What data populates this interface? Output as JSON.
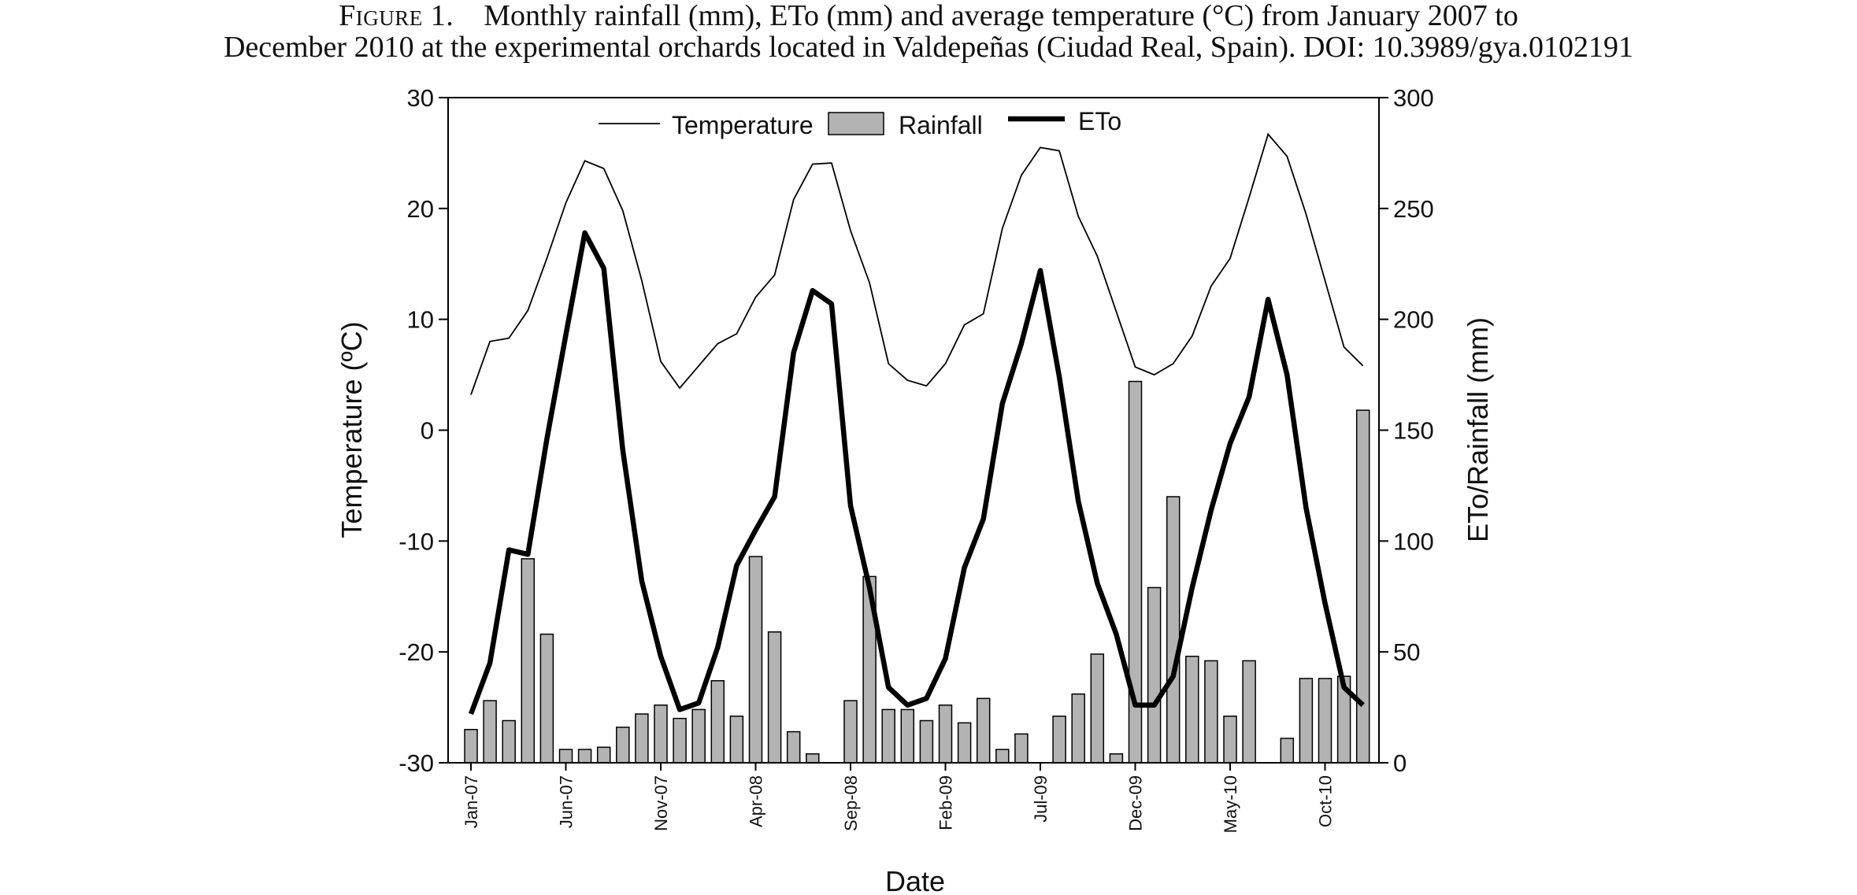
{
  "caption": {
    "figure_label": "Figure 1.",
    "line1": "Monthly rainfall (mm), ETo (mm) and average temperature (°C) from January 2007 to",
    "line2": "December 2010 at the experimental orchards located in Valdepeñas (Ciudad Real, Spain). DOI: 10.3989/gya.0102191"
  },
  "chart_data": {
    "type": "bar+line",
    "title": "",
    "xlabel": "Date",
    "ylabel_left": "Temperature (ºC)",
    "ylabel_right": "ETo/Rainfall (mm)",
    "ylim_left": [
      -30,
      30
    ],
    "ylim_right": [
      0,
      300
    ],
    "yticks_left": [
      -30,
      -20,
      -10,
      0,
      10,
      20,
      30
    ],
    "yticks_right": [
      0,
      50,
      100,
      150,
      200,
      250,
      300
    ],
    "grid": false,
    "legend_position": "top-center",
    "x_tick_labels": [
      "Jan-07",
      "Jun-07",
      "Nov-07",
      "Apr-08",
      "Sep-08",
      "Feb-09",
      "Jul-09",
      "Dec-09",
      "May-10",
      "Oct-10"
    ],
    "x_tick_step_months": 5,
    "months": [
      "Jan-07",
      "Feb-07",
      "Mar-07",
      "Apr-07",
      "May-07",
      "Jun-07",
      "Jul-07",
      "Aug-07",
      "Sep-07",
      "Oct-07",
      "Nov-07",
      "Dec-07",
      "Jan-08",
      "Feb-08",
      "Mar-08",
      "Apr-08",
      "May-08",
      "Jun-08",
      "Jul-08",
      "Aug-08",
      "Sep-08",
      "Oct-08",
      "Nov-08",
      "Dec-08",
      "Jan-09",
      "Feb-09",
      "Mar-09",
      "Apr-09",
      "May-09",
      "Jun-09",
      "Jul-09",
      "Aug-09",
      "Sep-09",
      "Oct-09",
      "Nov-09",
      "Dec-09",
      "Jan-10",
      "Feb-10",
      "Mar-10",
      "Apr-10",
      "May-10",
      "Jun-10",
      "Jul-10",
      "Aug-10",
      "Sep-10",
      "Oct-10",
      "Nov-10",
      "Dec-10"
    ],
    "series": [
      {
        "name": "Temperature",
        "type": "line",
        "axis": "left",
        "color": "#000000",
        "line_weight": "thin",
        "values": [
          3.2,
          8.0,
          8.3,
          10.8,
          15.5,
          20.5,
          24.3,
          23.6,
          19.8,
          13.5,
          6.2,
          3.8,
          5.8,
          7.8,
          8.7,
          12.0,
          14.0,
          20.8,
          24.0,
          24.1,
          18.0,
          13.3,
          6.0,
          4.5,
          4.0,
          6.0,
          9.5,
          10.5,
          18.2,
          23.0,
          25.5,
          25.2,
          19.3,
          15.7,
          10.7,
          5.7,
          5.0,
          6.0,
          8.5,
          13.0,
          15.5,
          21.0,
          26.7,
          24.7,
          19.5,
          13.5,
          7.5,
          5.8
        ]
      },
      {
        "name": "Rainfall",
        "type": "bar",
        "axis": "right",
        "color": "#b3b3b3",
        "values": [
          15,
          28,
          19,
          92,
          58,
          6,
          6,
          7,
          16,
          22,
          26,
          20,
          24,
          37,
          21,
          93,
          59,
          14,
          4,
          0,
          28,
          84,
          24,
          24,
          19,
          26,
          18,
          29,
          6,
          13,
          0,
          21,
          31,
          49,
          4,
          172,
          79,
          120,
          48,
          46,
          21,
          46,
          0,
          11,
          38,
          38,
          39,
          159
        ]
      },
      {
        "name": "ETo",
        "type": "line",
        "axis": "right",
        "color": "#000000",
        "line_weight": "thick",
        "values": [
          22,
          45,
          96,
          94,
          146,
          193,
          239,
          223,
          141,
          82,
          48,
          24,
          27,
          52,
          89,
          105,
          120,
          185,
          213,
          207,
          116,
          79,
          34,
          26,
          29,
          47,
          88,
          110,
          162,
          189,
          222,
          174,
          118,
          81,
          58,
          26,
          26,
          39,
          79,
          114,
          144,
          165,
          209,
          175,
          115,
          72,
          34,
          26
        ]
      }
    ]
  }
}
